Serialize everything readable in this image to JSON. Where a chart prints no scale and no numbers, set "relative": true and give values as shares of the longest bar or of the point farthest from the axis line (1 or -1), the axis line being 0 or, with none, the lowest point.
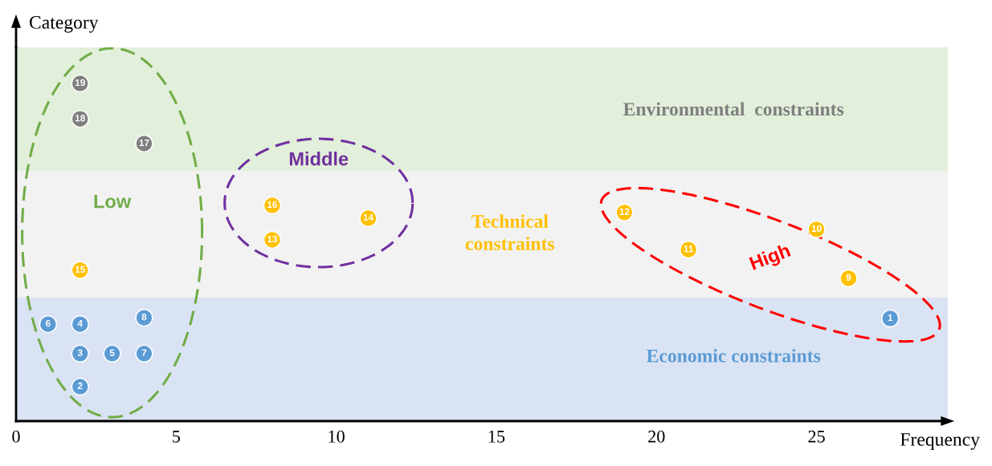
{
  "chart_data": {
    "type": "scatter",
    "xlabel": "Frequency",
    "ylabel": "Category",
    "relative": true,
    "xlim": [
      0,
      29.1
    ],
    "xticks": [
      0,
      5,
      10,
      15,
      20,
      25
    ],
    "grid": false,
    "marker": "circle",
    "series": [
      {
        "color": "#5b9bd5",
        "x": [
          27.3,
          2,
          2,
          2,
          3,
          1,
          4,
          4
        ],
        "values": [
          0.304,
          0.102,
          0.2,
          0.287,
          0.2,
          0.287,
          0.2,
          0.306
        ]
      },
      {
        "color": "#ffc000",
        "x": [
          26,
          25,
          21,
          19,
          8,
          11,
          2,
          8
        ],
        "values": [
          0.423,
          0.568,
          0.508,
          0.618,
          0.537,
          0.601,
          0.447,
          0.639
        ]
      },
      {
        "color": "#7f7f7f",
        "x": [
          4,
          2,
          2
        ],
        "values": [
          0.822,
          0.895,
          1.0
        ]
      }
    ],
    "bands": [
      {
        "axis": "y",
        "from": 0,
        "to": 0.366,
        "label": "Economic constraints",
        "color": "#dae3f3"
      },
      {
        "axis": "y",
        "from": 0.366,
        "to": 0.741,
        "label": "Technical\nconstraints",
        "color": "#f2f2f2"
      },
      {
        "axis": "y",
        "from": 0.741,
        "to": 1.107,
        "label": "Environmental  constraints",
        "color": "#e2efda"
      }
    ],
    "annotations": [
      "Low",
      "Middle",
      "High",
      {
        "text": "1",
        "x": 27.3,
        "y": 0.304
      },
      {
        "text": "2",
        "x": 2,
        "y": 0.102
      },
      {
        "text": "3",
        "x": 2,
        "y": 0.2
      },
      {
        "text": "4",
        "x": 2,
        "y": 0.287
      },
      {
        "text": "5",
        "x": 3,
        "y": 0.2
      },
      {
        "text": "6",
        "x": 1,
        "y": 0.287
      },
      {
        "text": "7",
        "x": 4,
        "y": 0.2
      },
      {
        "text": "8",
        "x": 4,
        "y": 0.306
      },
      {
        "text": "9",
        "x": 26,
        "y": 0.423
      },
      {
        "text": "10",
        "x": 25,
        "y": 0.568
      },
      {
        "text": "11",
        "x": 21,
        "y": 0.508
      },
      {
        "text": "12",
        "x": 19,
        "y": 0.618
      },
      {
        "text": "13",
        "x": 8,
        "y": 0.537
      },
      {
        "text": "14",
        "x": 11,
        "y": 0.601
      },
      {
        "text": "15",
        "x": 2,
        "y": 0.447
      },
      {
        "text": "16",
        "x": 8,
        "y": 0.639
      },
      {
        "text": "17",
        "x": 4,
        "y": 0.822
      },
      {
        "text": "18",
        "x": 2,
        "y": 0.895
      },
      {
        "text": "19",
        "x": 2,
        "y": 1.0
      }
    ]
  }
}
